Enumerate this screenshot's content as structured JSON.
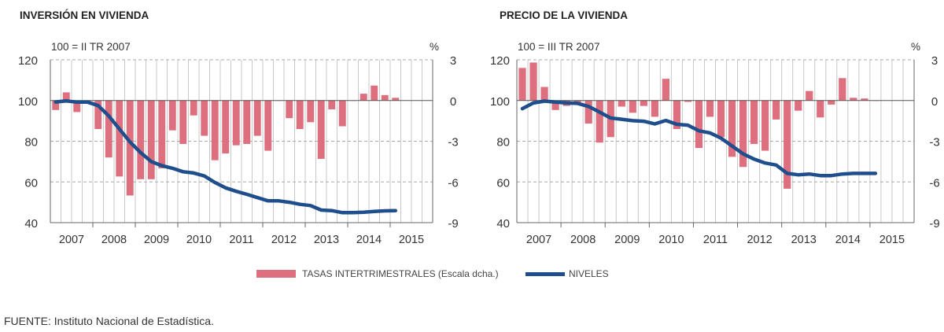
{
  "colors": {
    "bars": "#de6f7f",
    "line": "#1f4e8c",
    "grid": "#bbbbbb"
  },
  "legend": {
    "bars_label": "TASAS INTERTRIMESTRALES (Escala dcha.)",
    "line_label": "NIVELES"
  },
  "source": "FUENTE: Instituto Nacional de Estadística.",
  "chart_data": [
    {
      "type": "bar+line",
      "title": "INVERSIÓN EN VIVIENDA",
      "left_axis_label": "100 = II TR 2007",
      "right_axis_label": "%",
      "ylim_left": [
        40,
        120
      ],
      "ylim_right": [
        -9,
        3
      ],
      "left_ticks": [
        "40",
        "60",
        "80",
        "100",
        "120"
      ],
      "right_ticks": [
        "-9",
        "-6",
        "-3",
        "0",
        "3"
      ],
      "x_ticks": [
        "2007",
        "2008",
        "2009",
        "2010",
        "2011",
        "2012",
        "2013",
        "2014",
        "2015"
      ],
      "x_start": "2007 Q1",
      "frequency": "quarterly",
      "series": [
        {
          "name": "TASAS INTERTRIMESTRALES (Escala dcha.)",
          "kind": "bar",
          "axis": "right",
          "values": [
            -0.7,
            0.6,
            -0.85,
            -0.05,
            -2.1,
            -4.2,
            -5.6,
            -7.0,
            -5.8,
            -5.8,
            -5.0,
            -2.2,
            -3.2,
            -1.1,
            -2.6,
            -4.4,
            -3.9,
            -3.3,
            -3.2,
            -2.6,
            -3.7,
            0,
            -1.3,
            -2.1,
            -1.6,
            -4.3,
            -0.65,
            -1.9,
            0,
            0.5,
            1.1,
            0.4,
            0.2
          ]
        },
        {
          "name": "NIVELES",
          "kind": "line",
          "axis": "left",
          "values": [
            99.3,
            99.8,
            99.2,
            99.2,
            97.5,
            92.4,
            86.0,
            79.6,
            74.4,
            70.0,
            68.0,
            66.7,
            65.0,
            64.4,
            62.9,
            59.7,
            57.1,
            55.4,
            53.9,
            52.3,
            50.7,
            50.7,
            50.0,
            49.0,
            48.4,
            46.2,
            45.9,
            44.9,
            44.9,
            45.1,
            45.5,
            45.8,
            45.9
          ]
        }
      ]
    },
    {
      "type": "bar+line",
      "title": "PRECIO DE LA VIVIENDA",
      "left_axis_label": "100 = III TR 2007",
      "right_axis_label": "%",
      "ylim_left": [
        40,
        120
      ],
      "ylim_right": [
        -9,
        3
      ],
      "left_ticks": [
        "40",
        "60",
        "80",
        "100",
        "120"
      ],
      "right_ticks": [
        "-9",
        "-6",
        "-3",
        "0",
        "3"
      ],
      "x_ticks": [
        "2007",
        "2008",
        "2009",
        "2010",
        "2011",
        "2012",
        "2013",
        "2014",
        "2015"
      ],
      "x_start": "2007 Q1",
      "frequency": "quarterly",
      "series": [
        {
          "name": "TASAS INTERTRIMESTRALES (Escala dcha.)",
          "kind": "bar",
          "axis": "right",
          "values": [
            2.4,
            2.8,
            1.0,
            -0.7,
            -0.4,
            -0.15,
            -1.7,
            -3.1,
            -2.7,
            -0.45,
            -0.9,
            -0.4,
            -1.2,
            1.6,
            -2.1,
            -0.1,
            -3.5,
            -1.2,
            -2.7,
            -4.15,
            -4.9,
            -3.2,
            -3.7,
            -1.4,
            -6.5,
            -0.75,
            0.7,
            -1.25,
            -0.3,
            1.65,
            0.2,
            0.15,
            -0.02
          ]
        },
        {
          "name": "NIVELES",
          "kind": "line",
          "axis": "left",
          "values": [
            96.0,
            98.8,
            99.7,
            99.2,
            98.8,
            98.6,
            97.1,
            94.3,
            91.4,
            90.8,
            90.1,
            89.8,
            88.5,
            90.2,
            88.3,
            87.9,
            85.1,
            84.1,
            81.5,
            77.7,
            73.8,
            71.2,
            69.3,
            68.3,
            64.2,
            63.5,
            63.9,
            63.1,
            63.1,
            63.9,
            64.2,
            64.2,
            64.2
          ]
        }
      ]
    }
  ]
}
